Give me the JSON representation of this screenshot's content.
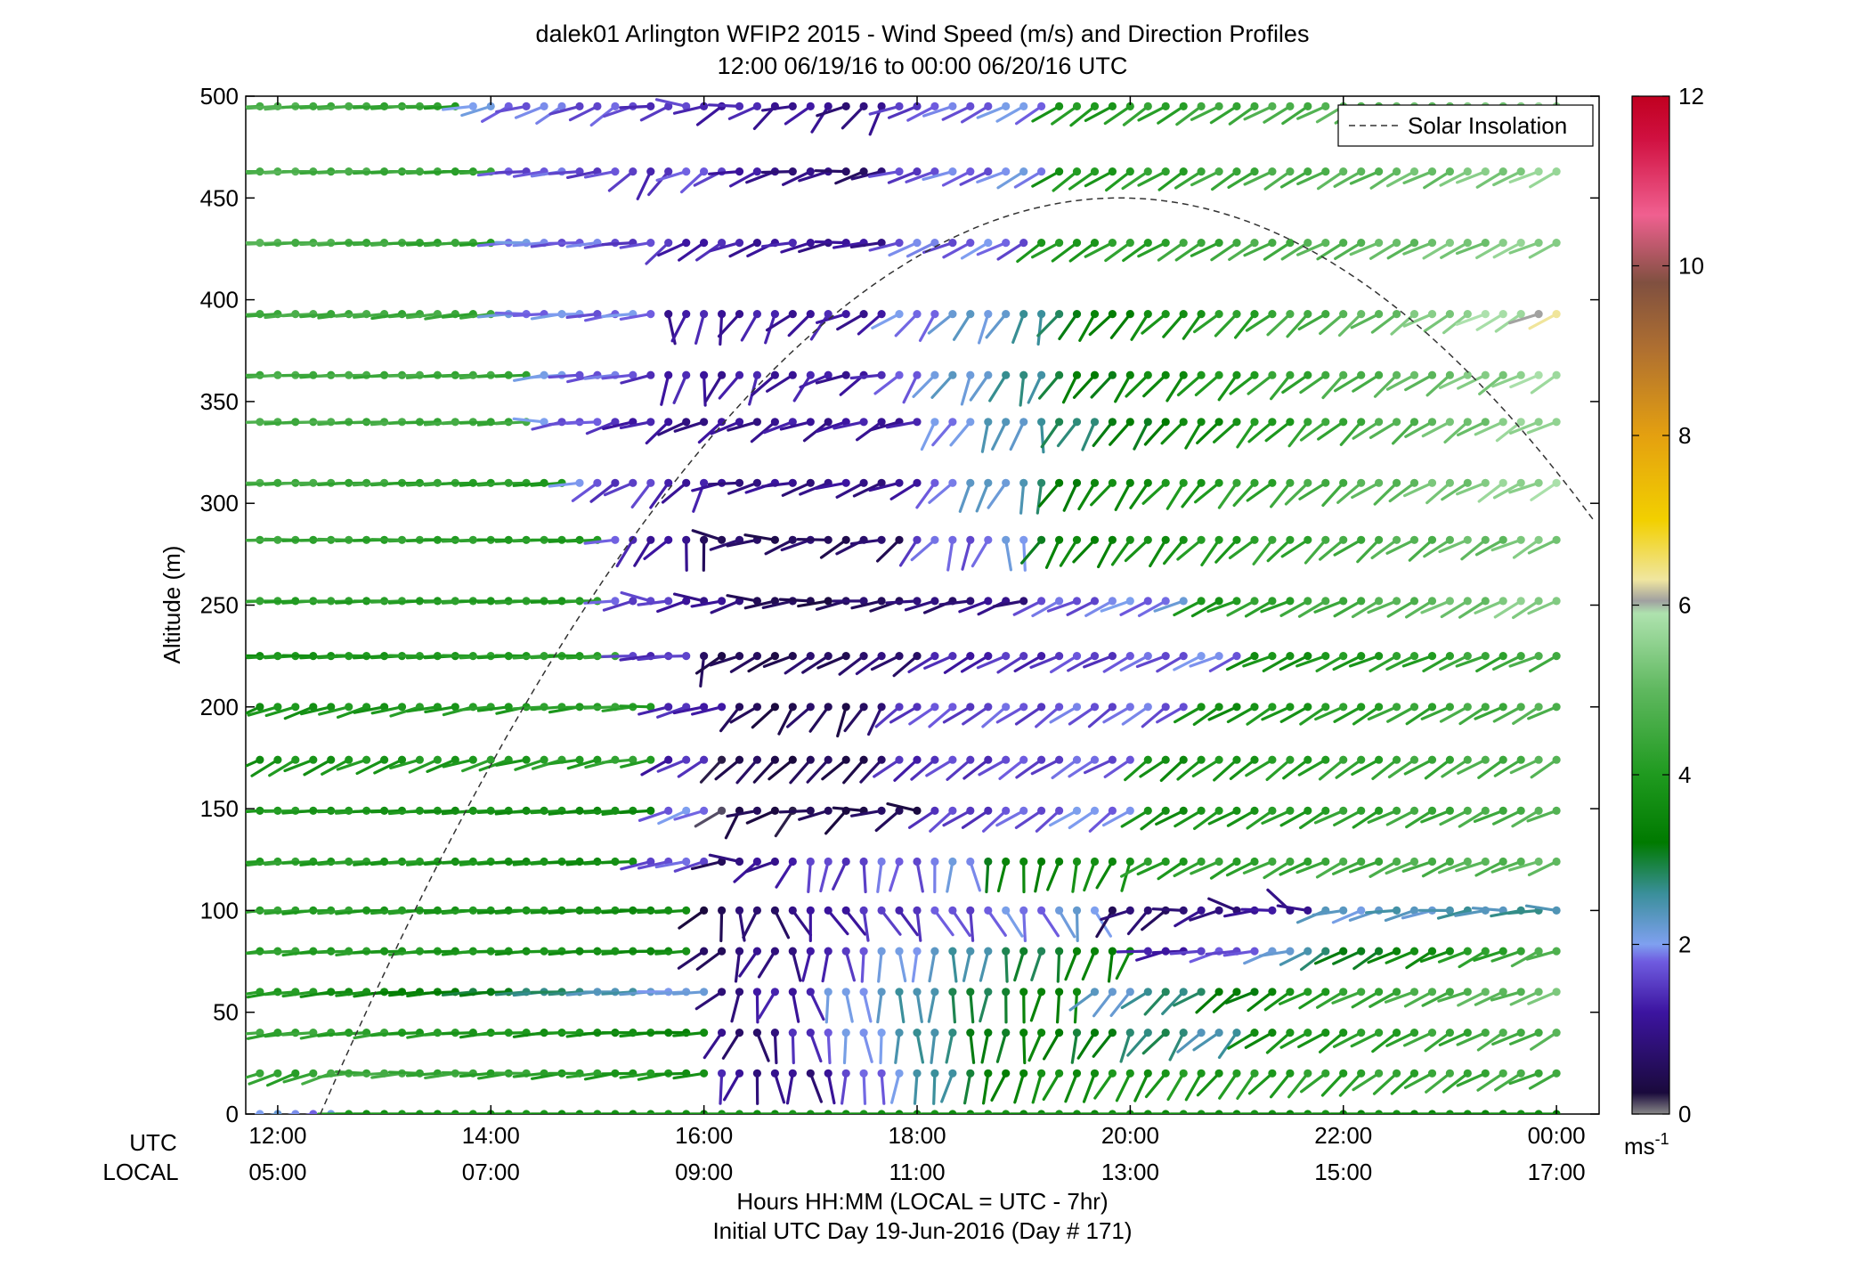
{
  "chart_data": {
    "type": "wind-barb-profile",
    "title": "dalek01 Arlington WFIP2 2015 - Wind Speed (m/s) and Direction Profiles",
    "subtitle": "12:00 06/19/16 to 00:00 06/20/16  UTC",
    "ylabel": "Altitude (m)",
    "xlabel": "Hours HH:MM  (LOCAL = UTC - 7hr)",
    "xlabel2": "Initial UTC Day 19-Jun-2016 (Day # 171)",
    "xlim_hours_utc": [
      11.7,
      24.4
    ],
    "ylim": [
      0,
      500
    ],
    "y_ticks": [
      0,
      50,
      100,
      150,
      200,
      250,
      300,
      350,
      400,
      450,
      500
    ],
    "x_row_labels": {
      "utc": "UTC",
      "local": "LOCAL"
    },
    "x_ticks": [
      {
        "hour_utc": 12,
        "utc": "12:00",
        "local": "05:00"
      },
      {
        "hour_utc": 14,
        "utc": "14:00",
        "local": "07:00"
      },
      {
        "hour_utc": 16,
        "utc": "16:00",
        "local": "09:00"
      },
      {
        "hour_utc": 18,
        "utc": "18:00",
        "local": "11:00"
      },
      {
        "hour_utc": 20,
        "utc": "20:00",
        "local": "13:00"
      },
      {
        "hour_utc": 22,
        "utc": "22:00",
        "local": "15:00"
      },
      {
        "hour_utc": 24,
        "utc": "00:00",
        "local": "17:00"
      }
    ],
    "legend": {
      "label": "Solar Insolation",
      "position": "top-right"
    },
    "solar_insolation_curve": {
      "start_hour_utc": 12.4,
      "peak_hour_utc": 19.9,
      "peak_altitude_m": 450
    },
    "colorbar": {
      "min": 0,
      "max": 12,
      "ticks": [
        0,
        2,
        4,
        6,
        8,
        10,
        12
      ],
      "unit_base": "ms",
      "unit_exp": "-1",
      "stops": [
        {
          "v": 0.0,
          "color": "#888888"
        },
        {
          "v": 0.25,
          "color": "#1a0a3c"
        },
        {
          "v": 1.2,
          "color": "#3c14a0"
        },
        {
          "v": 1.8,
          "color": "#6f5ce0"
        },
        {
          "v": 2.0,
          "color": "#7fa0f0"
        },
        {
          "v": 2.6,
          "color": "#3a8f9a"
        },
        {
          "v": 3.2,
          "color": "#007a00"
        },
        {
          "v": 4.0,
          "color": "#1f9a1f"
        },
        {
          "v": 5.0,
          "color": "#5fb85f"
        },
        {
          "v": 5.9,
          "color": "#aee2ae"
        },
        {
          "v": 6.05,
          "color": "#a0a0a0"
        },
        {
          "v": 6.3,
          "color": "#f0e6a0"
        },
        {
          "v": 7.0,
          "color": "#f2d000"
        },
        {
          "v": 8.0,
          "color": "#e4a010"
        },
        {
          "v": 9.0,
          "color": "#b07030"
        },
        {
          "v": 9.8,
          "color": "#805040"
        },
        {
          "v": 10.6,
          "color": "#f06090"
        },
        {
          "v": 11.5,
          "color": "#d01040"
        },
        {
          "v": 12.0,
          "color": "#c00020"
        }
      ]
    },
    "grid": false,
    "altitudes_m": [
      0,
      20,
      40,
      60,
      80,
      100,
      124,
      149,
      174,
      200,
      225,
      252,
      282,
      310,
      340,
      363,
      393,
      428,
      463,
      495
    ],
    "time_step_minutes": 10,
    "samples_start_hour_utc": 11.833,
    "wind_profile_description": "Wind direction in degrees (direction wind comes from) and speed in m/s per altitude row, one barb per 10 minutes. Rows hold ordered time segments [start_hour_utc, end_hour_utc, start_direction_deg, end_direction_deg, start_speed, end_speed, wobble].",
    "wind_segments": {
      "0": [
        [
          11.8,
          12.5,
          260,
          260,
          2.0,
          2.0,
          0
        ],
        [
          12.5,
          24.1,
          270,
          270,
          3.8,
          3.6,
          0
        ]
      ],
      "20": [
        [
          11.8,
          12.5,
          250,
          250,
          4.2,
          4.4,
          4
        ],
        [
          12.5,
          16.1,
          268,
          262,
          4.6,
          3.8,
          6
        ],
        [
          16.1,
          17.1,
          200,
          160,
          1.2,
          0.8,
          20
        ],
        [
          17.1,
          19.0,
          175,
          200,
          1.2,
          3.6,
          10
        ],
        [
          19.0,
          24.1,
          200,
          245,
          3.6,
          4.6,
          8
        ]
      ],
      "40": [
        [
          11.8,
          16.0,
          262,
          268,
          4.4,
          3.5,
          4
        ],
        [
          16.0,
          16.8,
          220,
          160,
          1.0,
          0.6,
          25
        ],
        [
          16.8,
          19.0,
          170,
          190,
          1.4,
          3.4,
          12
        ],
        [
          19.0,
          21.0,
          195,
          230,
          3.4,
          2.4,
          15
        ],
        [
          21.0,
          24.1,
          235,
          245,
          3.6,
          4.8,
          8
        ]
      ],
      "60": [
        [
          11.8,
          16.0,
          262,
          268,
          4.2,
          2.0,
          3
        ],
        [
          16.0,
          17.0,
          220,
          170,
          0.8,
          1.4,
          25
        ],
        [
          17.0,
          19.5,
          170,
          190,
          1.8,
          3.6,
          12
        ],
        [
          19.5,
          21.5,
          220,
          240,
          2.0,
          3.6,
          12
        ],
        [
          21.5,
          24.1,
          240,
          250,
          4.0,
          5.2,
          6
        ]
      ],
      "80": [
        [
          11.8,
          15.9,
          265,
          268,
          4.2,
          3.6,
          3
        ],
        [
          15.9,
          17.2,
          230,
          175,
          0.6,
          1.2,
          25
        ],
        [
          17.2,
          20.0,
          175,
          200,
          1.6,
          3.6,
          12
        ],
        [
          20.0,
          21.6,
          265,
          255,
          1.0,
          2.2,
          10
        ],
        [
          21.6,
          24.1,
          240,
          250,
          2.6,
          4.8,
          8
        ]
      ],
      "100": [
        [
          11.8,
          15.9,
          265,
          268,
          4.2,
          3.6,
          3
        ],
        [
          15.9,
          17.0,
          210,
          150,
          0.4,
          1.0,
          30
        ],
        [
          17.0,
          19.8,
          150,
          160,
          1.2,
          2.2,
          20
        ],
        [
          19.8,
          21.8,
          220,
          300,
          0.6,
          1.2,
          25
        ],
        [
          21.8,
          24.1,
          250,
          270,
          2.2,
          2.6,
          10
        ]
      ],
      "124": [
        [
          11.8,
          15.4,
          265,
          266,
          4.2,
          3.6,
          2
        ],
        [
          15.4,
          16.0,
          260,
          255,
          1.8,
          1.6,
          4
        ],
        [
          16.0,
          16.8,
          260,
          250,
          0.6,
          1.2,
          30
        ],
        [
          16.8,
          18.5,
          200,
          175,
          1.4,
          2.0,
          15
        ],
        [
          18.5,
          20.0,
          180,
          205,
          3.2,
          3.8,
          10
        ],
        [
          20.0,
          24.1,
          240,
          250,
          4.0,
          5.0,
          6
        ]
      ],
      "149": [
        [
          11.8,
          15.5,
          268,
          265,
          4.0,
          3.6,
          2
        ],
        [
          15.5,
          16.0,
          250,
          250,
          1.8,
          1.8,
          5
        ],
        [
          16.0,
          18.0,
          230,
          260,
          0.3,
          0.5,
          30
        ],
        [
          18.0,
          20.0,
          235,
          235,
          1.4,
          2.0,
          8
        ],
        [
          20.0,
          24.1,
          238,
          245,
          3.6,
          4.8,
          6
        ]
      ],
      "174": [
        [
          11.8,
          15.5,
          240,
          260,
          3.8,
          4.2,
          6
        ],
        [
          15.5,
          16.0,
          245,
          240,
          1.2,
          1.4,
          6
        ],
        [
          16.0,
          17.7,
          225,
          225,
          0.4,
          0.5,
          6
        ],
        [
          17.7,
          20.0,
          230,
          240,
          1.4,
          1.8,
          6
        ],
        [
          20.0,
          24.1,
          230,
          240,
          3.6,
          4.8,
          6
        ]
      ],
      "200": [
        [
          11.8,
          15.5,
          250,
          268,
          3.8,
          4.2,
          5
        ],
        [
          15.5,
          16.2,
          255,
          255,
          1.2,
          1.4,
          5
        ],
        [
          16.2,
          17.8,
          235,
          200,
          0.4,
          0.6,
          15
        ],
        [
          17.8,
          20.6,
          235,
          235,
          1.6,
          1.8,
          6
        ],
        [
          20.6,
          24.1,
          240,
          242,
          3.6,
          4.8,
          6
        ]
      ],
      "225": [
        [
          11.8,
          15.3,
          268,
          268,
          3.8,
          4.2,
          3
        ],
        [
          15.3,
          15.9,
          265,
          265,
          1.6,
          1.4,
          4
        ],
        [
          15.9,
          16.3,
          180,
          280,
          0.8,
          0.4,
          30
        ],
        [
          16.3,
          18.0,
          245,
          235,
          0.4,
          0.8,
          8
        ],
        [
          18.0,
          21.0,
          240,
          245,
          1.2,
          1.9,
          6
        ],
        [
          21.0,
          24.1,
          245,
          245,
          3.6,
          4.6,
          6
        ]
      ],
      "252": [
        [
          11.8,
          15.0,
          268,
          268,
          4.2,
          4.0,
          2
        ],
        [
          15.0,
          16.8,
          270,
          260,
          2.0,
          0.4,
          20
        ],
        [
          16.8,
          19.0,
          265,
          250,
          0.4,
          1.0,
          10
        ],
        [
          19.0,
          20.5,
          245,
          245,
          1.6,
          2.0,
          6
        ],
        [
          20.5,
          24.1,
          245,
          240,
          3.8,
          5.6,
          6
        ]
      ],
      "282": [
        [
          11.8,
          15.0,
          270,
          268,
          4.4,
          4.0,
          2
        ],
        [
          15.0,
          16.1,
          250,
          180,
          1.8,
          0.6,
          25
        ],
        [
          16.1,
          17.9,
          270,
          240,
          0.6,
          0.6,
          20
        ],
        [
          17.9,
          19.0,
          220,
          180,
          1.6,
          2.0,
          20
        ],
        [
          19.0,
          24.1,
          210,
          245,
          3.2,
          5.4,
          10
        ]
      ],
      "310": [
        [
          11.8,
          14.8,
          268,
          266,
          4.6,
          4.0,
          2
        ],
        [
          14.8,
          16.0,
          250,
          210,
          1.8,
          1.2,
          15
        ],
        [
          16.0,
          18.0,
          260,
          245,
          1.0,
          1.0,
          10
        ],
        [
          18.0,
          19.2,
          225,
          190,
          1.8,
          2.6,
          15
        ],
        [
          19.2,
          24.1,
          210,
          245,
          3.2,
          5.8,
          10
        ]
      ],
      "340": [
        [
          11.8,
          14.4,
          268,
          266,
          4.6,
          4.4,
          2
        ],
        [
          14.4,
          15.6,
          270,
          250,
          2.0,
          1.2,
          10
        ],
        [
          15.6,
          18.0,
          240,
          250,
          1.0,
          1.2,
          15
        ],
        [
          18.0,
          19.2,
          225,
          190,
          1.8,
          2.6,
          15
        ],
        [
          19.2,
          24.1,
          210,
          245,
          2.6,
          5.8,
          10
        ]
      ],
      "363": [
        [
          11.8,
          14.4,
          268,
          266,
          4.6,
          4.4,
          2
        ],
        [
          14.4,
          15.5,
          265,
          260,
          2.0,
          1.6,
          5
        ],
        [
          15.5,
          17.8,
          180,
          260,
          1.2,
          1.2,
          20
        ],
        [
          17.8,
          19.3,
          225,
          195,
          1.8,
          2.8,
          15
        ],
        [
          19.3,
          24.1,
          215,
          245,
          3.0,
          5.8,
          10
        ]
      ],
      "393": [
        [
          11.8,
          14.0,
          266,
          262,
          4.6,
          4.4,
          2
        ],
        [
          14.0,
          15.5,
          270,
          260,
          2.0,
          1.8,
          5
        ],
        [
          15.5,
          17.8,
          180,
          250,
          1.2,
          1.2,
          20
        ],
        [
          17.8,
          19.3,
          230,
          195,
          1.8,
          2.6,
          15
        ],
        [
          19.3,
          24.1,
          215,
          245,
          3.0,
          6.2,
          10
        ]
      ],
      "428": [
        [
          11.8,
          14.0,
          268,
          266,
          4.8,
          4.2,
          2
        ],
        [
          14.0,
          15.5,
          268,
          262,
          2.0,
          1.6,
          4
        ],
        [
          15.5,
          17.8,
          230,
          270,
          1.4,
          1.0,
          10
        ],
        [
          17.8,
          19.0,
          250,
          240,
          1.8,
          1.8,
          6
        ],
        [
          19.0,
          24.1,
          235,
          245,
          3.8,
          5.6,
          6
        ]
      ],
      "463": [
        [
          11.8,
          14.0,
          268,
          268,
          4.8,
          4.2,
          2
        ],
        [
          14.0,
          15.3,
          265,
          260,
          1.8,
          1.6,
          4
        ],
        [
          15.3,
          16.2,
          210,
          250,
          1.4,
          1.8,
          20
        ],
        [
          16.2,
          17.8,
          250,
          260,
          1.2,
          0.6,
          15
        ],
        [
          17.8,
          19.2,
          255,
          240,
          1.6,
          2.0,
          6
        ],
        [
          19.2,
          24.1,
          235,
          245,
          3.8,
          5.6,
          6
        ]
      ],
      "495": [
        [
          11.8,
          13.7,
          266,
          268,
          4.8,
          4.2,
          2
        ],
        [
          13.7,
          15.4,
          255,
          240,
          2.0,
          1.6,
          12
        ],
        [
          15.4,
          17.8,
          270,
          220,
          1.6,
          0.8,
          25
        ],
        [
          17.8,
          19.2,
          250,
          240,
          1.6,
          2.0,
          6
        ],
        [
          19.2,
          24.1,
          235,
          245,
          3.8,
          5.6,
          6
        ]
      ]
    }
  }
}
